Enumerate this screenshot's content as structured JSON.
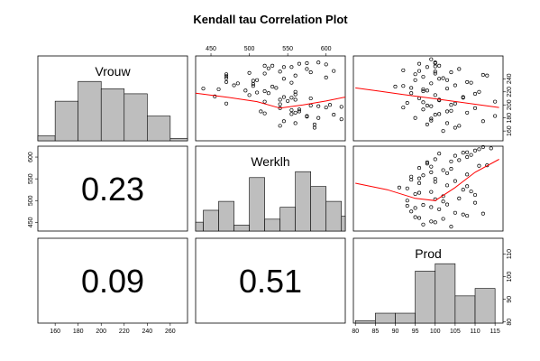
{
  "chart_data": {
    "type": "scatter-matrix",
    "title": "Kendall tau Correlation Plot",
    "variables": [
      "Vrouw",
      "Werklh",
      "Prod"
    ],
    "correlations": [
      {
        "row": 1,
        "col": 0,
        "value": "0.23"
      },
      {
        "row": 2,
        "col": 0,
        "value": "0.09"
      },
      {
        "row": 2,
        "col": 1,
        "value": "0.51"
      }
    ],
    "axes": {
      "Vrouw": {
        "range": [
          145,
          275
        ],
        "ticks": [
          160,
          180,
          200,
          220,
          240,
          260
        ]
      },
      "Werklh": {
        "range": [
          430,
          625
        ],
        "ticks": [
          450,
          500,
          550,
          600
        ]
      },
      "Prod": {
        "range": [
          79.5,
          117
        ],
        "ticks": [
          80,
          85,
          90,
          95,
          100,
          105,
          110,
          115
        ]
      }
    },
    "histograms": {
      "Vrouw": {
        "breaks": [
          140,
          160,
          180,
          200,
          220,
          240,
          260,
          280
        ],
        "counts": [
          2,
          16,
          24,
          21,
          19,
          10,
          1
        ]
      },
      "Werklh": {
        "breaks": [
          420,
          440,
          460,
          480,
          500,
          520,
          540,
          560,
          580,
          600,
          620,
          640
        ],
        "counts": [
          3,
          7,
          10,
          2,
          18,
          4,
          8,
          20,
          15,
          10,
          5
        ]
      },
      "Prod": {
        "breaks": [
          80,
          85,
          90,
          95,
          100,
          105,
          110,
          115
        ],
        "counts": [
          1,
          4,
          4,
          21,
          24,
          11,
          14
        ]
      }
    },
    "scatter": {
      "Vrouw_vs_Werklh": {
        "x": [
          165,
          172,
          178,
          182,
          185,
          188,
          190,
          192,
          195,
          198,
          200,
          202,
          205,
          208,
          210,
          212,
          215,
          218,
          220,
          222,
          225,
          228,
          230,
          232,
          235,
          238,
          240,
          242,
          245,
          248,
          250,
          252,
          255,
          258,
          260,
          262,
          265,
          168,
          175,
          180,
          186,
          193,
          199,
          206,
          213,
          219,
          226,
          233,
          241,
          249,
          256,
          263,
          183,
          197,
          211,
          224,
          237,
          251,
          264,
          187,
          201,
          216,
          229,
          244,
          258,
          170,
          196,
          221,
          247,
          190,
          208,
          234,
          260
        ],
        "y": [
          585,
          560,
          620,
          575,
          610,
          560,
          515,
          555,
          540,
          590,
          605,
          470,
          520,
          560,
          580,
          545,
          500,
          525,
          560,
          495,
          440,
          530,
          480,
          505,
          470,
          510,
          545,
          600,
          560,
          520,
          580,
          610,
          575,
          555,
          530,
          600,
          590,
          540,
          545,
          590,
          555,
          565,
          580,
          550,
          455,
          510,
          535,
          485,
          470,
          500,
          525,
          565,
          575,
          620,
          555,
          460,
          505,
          540,
          575,
          520,
          540,
          560,
          505,
          470,
          545,
          585,
          600,
          520,
          470,
          565,
          540,
          555,
          520
        ]
      },
      "Vrouw_vs_Prod": {
        "x": [
          160,
          165,
          170,
          175,
          180,
          185,
          188,
          190,
          193,
          195,
          198,
          200,
          203,
          205,
          207,
          210,
          212,
          215,
          218,
          220,
          222,
          225,
          228,
          230,
          233,
          235,
          238,
          240,
          243,
          245,
          248,
          250,
          253,
          255,
          258,
          260,
          263,
          265,
          270,
          172,
          183,
          196,
          208,
          221,
          234,
          247,
          259,
          168,
          179,
          191,
          204,
          217,
          229,
          241,
          252,
          186,
          199,
          211,
          226,
          238,
          251,
          176,
          202,
          224,
          246,
          264
        ],
        "y": [
          102,
          105,
          98,
          112,
          95,
          100,
          108,
          103,
          97,
          110,
          99,
          104,
          93,
          115,
          101,
          96,
          107,
          100,
          94,
          111,
          98,
          103,
          90,
          105,
          99,
          108,
          95,
          101,
          97,
          113,
          100,
          104,
          92,
          106,
          98,
          101,
          96,
          100,
          99,
          103,
          115,
          92,
          101,
          97,
          109,
          95,
          100,
          106,
          99,
          104,
          97,
          110,
          92,
          102,
          96,
          101,
          98,
          107,
          94,
          103,
          100,
          99,
          105,
          97,
          112,
          100
        ],
        "trend_x": [
          160,
          180,
          200,
          220,
          240,
          260,
          270
        ],
        "trend_y": [
          106,
          104,
          103.5,
          102.5,
          101.5,
          99,
          96
        ]
      },
      "Werklh_vs_Prod": {
        "x": [
          440,
          450,
          460,
          465,
          470,
          475,
          480,
          485,
          490,
          495,
          500,
          505,
          510,
          515,
          520,
          525,
          530,
          535,
          540,
          545,
          550,
          555,
          560,
          565,
          570,
          575,
          580,
          585,
          590,
          595,
          600,
          605,
          610,
          615,
          620,
          445,
          458,
          472,
          488,
          503,
          518,
          533,
          548,
          563,
          578,
          593,
          608,
          623,
          452,
          468,
          483,
          498,
          513,
          528,
          543,
          558,
          573,
          588,
          603,
          618,
          462,
          491,
          521,
          551,
          581,
          611
        ],
        "y": [
          104,
          100,
          96,
          108,
          112,
          94,
          101,
          99,
          97,
          110,
          93,
          106,
          102,
          95,
          99,
          107,
          91,
          103,
          96,
          105,
          100,
          94,
          108,
          99,
          102,
          96,
          111,
          98,
          104,
          100,
          108,
          109,
          107,
          110,
          114,
          97,
          102,
          105,
          93,
          100,
          96,
          108,
          94,
          103,
          99,
          106,
          101,
          112,
          99,
          107,
          95,
          102,
          110,
          93,
          100,
          97,
          104,
          98,
          105,
          111,
          95,
          103,
          109,
          96,
          113,
          108
        ],
        "trend_x": [
          440,
          480,
          520,
          550,
          580,
          600,
          625
        ],
        "trend_y": [
          108,
          105,
          101,
          98.5,
          101,
          106,
          109.5
        ]
      }
    },
    "colors": {
      "bar_fill": "#bebebe",
      "trend": "#ff0000",
      "points": "#000000"
    }
  }
}
